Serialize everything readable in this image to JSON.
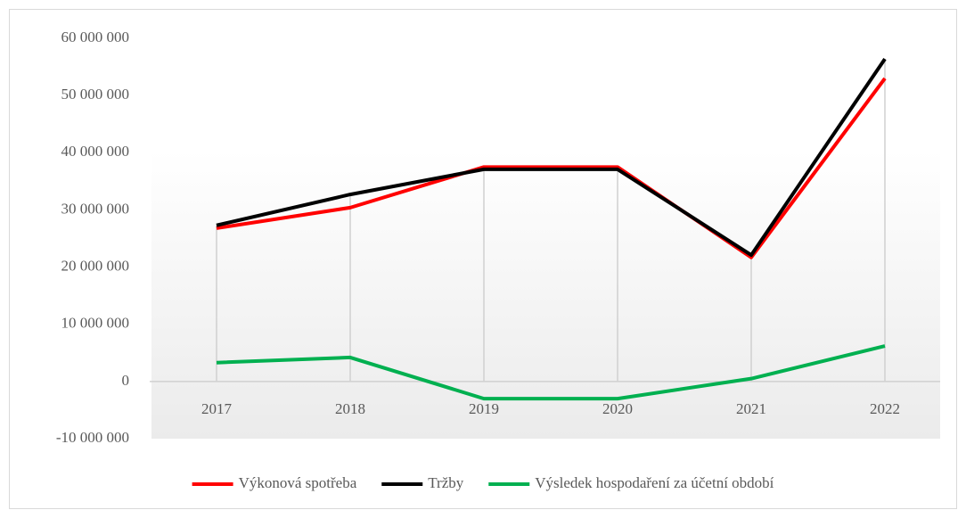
{
  "chart_data": {
    "type": "line",
    "categories": [
      "2017",
      "2018",
      "2019",
      "2020",
      "2021",
      "2022"
    ],
    "series": [
      {
        "name": "Výkonová spotřeba",
        "color": "#ff0000",
        "values": [
          26800000,
          30400000,
          37500000,
          37500000,
          21700000,
          53000000
        ]
      },
      {
        "name": "Tržby",
        "color": "#000000",
        "values": [
          27300000,
          32700000,
          37100000,
          37100000,
          22100000,
          56400000
        ]
      },
      {
        "name": "Výsledek hospodaření za účetní období",
        "color": "#00b050",
        "values": [
          3300000,
          4200000,
          -3000000,
          -3000000,
          500000,
          6200000
        ]
      }
    ],
    "ylim": [
      -10000000,
      60000000
    ],
    "yticks": [
      {
        "value": -10000000,
        "label": "-10 000 000"
      },
      0,
      {
        "value": 10000000,
        "label": "10 000 000"
      },
      {
        "value": 20000000,
        "label": "20 000 000"
      },
      {
        "value": 30000000,
        "label": "30 000 000"
      },
      {
        "value": 40000000,
        "label": "40 000 000"
      },
      {
        "value": 50000000,
        "label": "50 000 000"
      },
      {
        "value": 60000000,
        "label": "60 000 000"
      }
    ],
    "drop_lines": true,
    "legend": "bottom"
  }
}
